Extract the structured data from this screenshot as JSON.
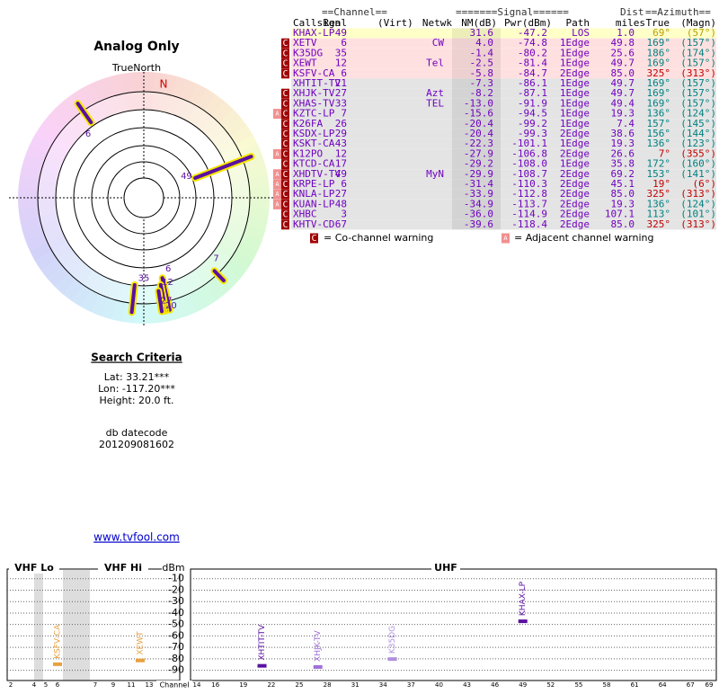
{
  "report_title": "Analog Only",
  "radar": {
    "north_label": "TrueNorth",
    "n_label": "N",
    "markers": [
      {
        "label": "6",
        "azimuth": 325,
        "nm": -5.8
      },
      {
        "label": "49",
        "azimuth": 69,
        "nm": 31.6
      },
      {
        "label": "7",
        "azimuth": 136,
        "nm": -15.6
      },
      {
        "label": "35",
        "azimuth": 186,
        "nm": -1.4
      },
      {
        "label": "6",
        "azimuth": 167,
        "nm": 4.0
      },
      {
        "label": "12",
        "azimuth": 169,
        "nm": -2.5
      },
      {
        "label": "20",
        "azimuth": 170,
        "nm": -20.4
      },
      {
        "label": "27",
        "azimuth": 171,
        "nm": -8.2
      }
    ]
  },
  "search": {
    "title": "Search Criteria",
    "lat": "Lat: 33.21***",
    "lon": "Lon: -117.20***",
    "height": "Height: 20.0 ft.",
    "datecode_label": "db datecode",
    "datecode": "201209081602",
    "link": "www.tvfool.com"
  },
  "table": {
    "group_headers": {
      "channel": "==Channel==",
      "signal": "=======Signal======",
      "dist": "Dist",
      "azimuth": "==Azimuth=="
    },
    "headers": {
      "callsign": "Callsign",
      "real": "Real",
      "virt": "(Virt)",
      "netwk": "Netwk",
      "nm": "NM(dB)",
      "pwr": "Pwr(dBm)",
      "path": "Path",
      "dist": "miles",
      "true": "True",
      "magn": "(Magn)"
    },
    "rows": [
      {
        "callsign": "KHAX-LP",
        "real": "49",
        "nm": "31.6",
        "pwr": "-47.2",
        "path": "LOS",
        "dist": "1.0",
        "true": "69°",
        "magn": "(57°)",
        "flags": [],
        "bg": "#ffffc8",
        "az_color": "#b8a000"
      },
      {
        "callsign": "XETV",
        "real": "6",
        "netwk": "CW",
        "nm": "4.0",
        "pwr": "-74.8",
        "path": "1Edge",
        "dist": "49.8",
        "true": "169°",
        "magn": "(157°)",
        "flags": [
          "C"
        ],
        "bg": "#ffe0e0",
        "az_color": "#008080"
      },
      {
        "callsign": "K35DG",
        "real": "35",
        "nm": "-1.4",
        "pwr": "-80.2",
        "path": "1Edge",
        "dist": "25.6",
        "true": "186°",
        "magn": "(174°)",
        "flags": [
          "C"
        ],
        "bg": "#ffe0e0",
        "az_color": "#008080"
      },
      {
        "callsign": "XEWT",
        "real": "12",
        "netwk": "Tel",
        "nm": "-2.5",
        "pwr": "-81.4",
        "path": "1Edge",
        "dist": "49.7",
        "true": "169°",
        "magn": "(157°)",
        "flags": [
          "C"
        ],
        "bg": "#ffe0e0",
        "az_color": "#008080"
      },
      {
        "callsign": "KSFV-CA",
        "real": "6",
        "nm": "-5.8",
        "pwr": "-84.7",
        "path": "2Edge",
        "dist": "85.0",
        "true": "325°",
        "magn": "(313°)",
        "flags": [
          "C"
        ],
        "bg": "#ffe0e0",
        "az_color": "#c00000"
      },
      {
        "callsign": "XHTIT-TV",
        "real": "21",
        "nm": "-7.3",
        "pwr": "-86.1",
        "path": "1Edge",
        "dist": "49.7",
        "true": "169°",
        "magn": "(157°)",
        "flags": [],
        "bg": "#e4e4e4",
        "az_color": "#008080"
      },
      {
        "callsign": "XHJK-TV",
        "real": "27",
        "netwk": "Azt",
        "nm": "-8.2",
        "pwr": "-87.1",
        "path": "1Edge",
        "dist": "49.7",
        "true": "169°",
        "magn": "(157°)",
        "flags": [
          "C"
        ],
        "bg": "#e4e4e4",
        "az_color": "#008080"
      },
      {
        "callsign": "XHAS-TV",
        "real": "33",
        "netwk": "TEL",
        "nm": "-13.0",
        "pwr": "-91.9",
        "path": "1Edge",
        "dist": "49.4",
        "true": "169°",
        "magn": "(157°)",
        "flags": [
          "C"
        ],
        "bg": "#e4e4e4",
        "az_color": "#008080"
      },
      {
        "callsign": "KZTC-LP",
        "real": "7",
        "nm": "-15.6",
        "pwr": "-94.5",
        "path": "1Edge",
        "dist": "19.3",
        "true": "136°",
        "magn": "(124°)",
        "flags": [
          "A",
          "C"
        ],
        "bg": "#e4e4e4",
        "az_color": "#008080"
      },
      {
        "callsign": "K26FA",
        "real": "26",
        "nm": "-20.4",
        "pwr": "-99.2",
        "path": "1Edge",
        "dist": "7.4",
        "true": "157°",
        "magn": "(145°)",
        "flags": [
          "C"
        ],
        "bg": "#e4e4e4",
        "az_color": "#008080"
      },
      {
        "callsign": "KSDX-LP",
        "real": "29",
        "nm": "-20.4",
        "pwr": "-99.3",
        "path": "2Edge",
        "dist": "38.6",
        "true": "156°",
        "magn": "(144°)",
        "flags": [
          "C"
        ],
        "bg": "#e4e4e4",
        "az_color": "#008080"
      },
      {
        "callsign": "KSKT-CA",
        "real": "43",
        "nm": "-22.3",
        "pwr": "-101.1",
        "path": "1Edge",
        "dist": "19.3",
        "true": "136°",
        "magn": "(123°)",
        "flags": [
          "C"
        ],
        "bg": "#e4e4e4",
        "az_color": "#008080"
      },
      {
        "callsign": "K12PO",
        "real": "12",
        "nm": "-27.9",
        "pwr": "-106.8",
        "path": "2Edge",
        "dist": "26.6",
        "true": "7°",
        "magn": "(355°)",
        "flags": [
          "A",
          "C"
        ],
        "bg": "#e4e4e4",
        "az_color": "#c00000"
      },
      {
        "callsign": "KTCD-CA",
        "real": "17",
        "nm": "-29.2",
        "pwr": "-108.0",
        "path": "1Edge",
        "dist": "35.8",
        "true": "172°",
        "magn": "(160°)",
        "flags": [
          "C"
        ],
        "bg": "#e4e4e4",
        "az_color": "#008080"
      },
      {
        "callsign": "XHDTV-TV",
        "real": "49",
        "netwk": "MyN",
        "nm": "-29.9",
        "pwr": "-108.7",
        "path": "2Edge",
        "dist": "69.2",
        "true": "153°",
        "magn": "(141°)",
        "flags": [
          "A",
          "C"
        ],
        "bg": "#e4e4e4",
        "az_color": "#008080"
      },
      {
        "callsign": "KRPE-LP",
        "real": "6",
        "nm": "-31.4",
        "pwr": "-110.3",
        "path": "2Edge",
        "dist": "45.1",
        "true": "19°",
        "magn": "(6°)",
        "flags": [
          "A",
          "C"
        ],
        "bg": "#e4e4e4",
        "az_color": "#c00000"
      },
      {
        "callsign": "KNLA-LP",
        "real": "27",
        "nm": "-33.9",
        "pwr": "-112.8",
        "path": "2Edge",
        "dist": "85.0",
        "true": "325°",
        "magn": "(313°)",
        "flags": [
          "A",
          "C"
        ],
        "bg": "#e4e4e4",
        "az_color": "#c00000"
      },
      {
        "callsign": "KUAN-LP",
        "real": "48",
        "nm": "-34.9",
        "pwr": "-113.7",
        "path": "2Edge",
        "dist": "19.3",
        "true": "136°",
        "magn": "(124°)",
        "flags": [
          "A",
          "C"
        ],
        "bg": "#e4e4e4",
        "az_color": "#008080"
      },
      {
        "callsign": "XHBC",
        "real": "3",
        "nm": "-36.0",
        "pwr": "-114.9",
        "path": "2Edge",
        "dist": "107.1",
        "true": "113°",
        "magn": "(101°)",
        "flags": [
          "C"
        ],
        "bg": "#e4e4e4",
        "az_color": "#008080"
      },
      {
        "callsign": "KHTV-CD",
        "real": "67",
        "nm": "-39.6",
        "pwr": "-118.4",
        "path": "2Edge",
        "dist": "85.0",
        "true": "325°",
        "magn": "(313°)",
        "flags": [
          "C"
        ],
        "bg": "#e4e4e4",
        "az_color": "#c00000"
      }
    ],
    "legend": {
      "co_flag": "C",
      "co_text": "= Co-channel warning",
      "adj_flag": "A",
      "adj_text": "= Adjacent channel warning"
    }
  },
  "spectrum": {
    "type": "spectrum",
    "unit": "dBm",
    "x_label": "Channel",
    "ylim": [
      -95,
      0
    ],
    "yticks": [
      -10,
      -20,
      -30,
      -40,
      -50,
      -60,
      -70,
      -80,
      -90
    ],
    "panels": [
      {
        "name": "VHF Lo",
        "xlim": [
          2,
          6
        ],
        "xticks": [
          2,
          4,
          5,
          6
        ]
      },
      {
        "name": "VHF Hi",
        "xlim": [
          7,
          13
        ],
        "xticks": [
          7,
          9,
          11,
          13
        ]
      },
      {
        "name": "UHF",
        "xlim": [
          14,
          69
        ],
        "xticks": [
          14,
          16,
          19,
          22,
          25,
          28,
          31,
          34,
          37,
          40,
          43,
          46,
          49,
          52,
          55,
          58,
          61,
          64,
          67,
          69
        ]
      }
    ],
    "markers": [
      {
        "name": "KSFV-CA",
        "panel": 0,
        "channel": 6,
        "value": -84.7,
        "color": "#e8a040"
      },
      {
        "name": "XEWT",
        "panel": 1,
        "channel": 12,
        "value": -81.4,
        "color": "#e8a040"
      },
      {
        "name": "XHTIT-TV",
        "panel": 2,
        "channel": 21,
        "value": -86.1,
        "color": "#5a10a0"
      },
      {
        "name": "XHJK-TV",
        "panel": 2,
        "channel": 27,
        "value": -87.1,
        "color": "#a070d8"
      },
      {
        "name": "K35DG",
        "panel": 2,
        "channel": 35,
        "value": -80.2,
        "color": "#b090e0"
      },
      {
        "name": "KHAX-LP",
        "panel": 2,
        "channel": 49,
        "value": -47.2,
        "color": "#5a10a0"
      }
    ]
  }
}
